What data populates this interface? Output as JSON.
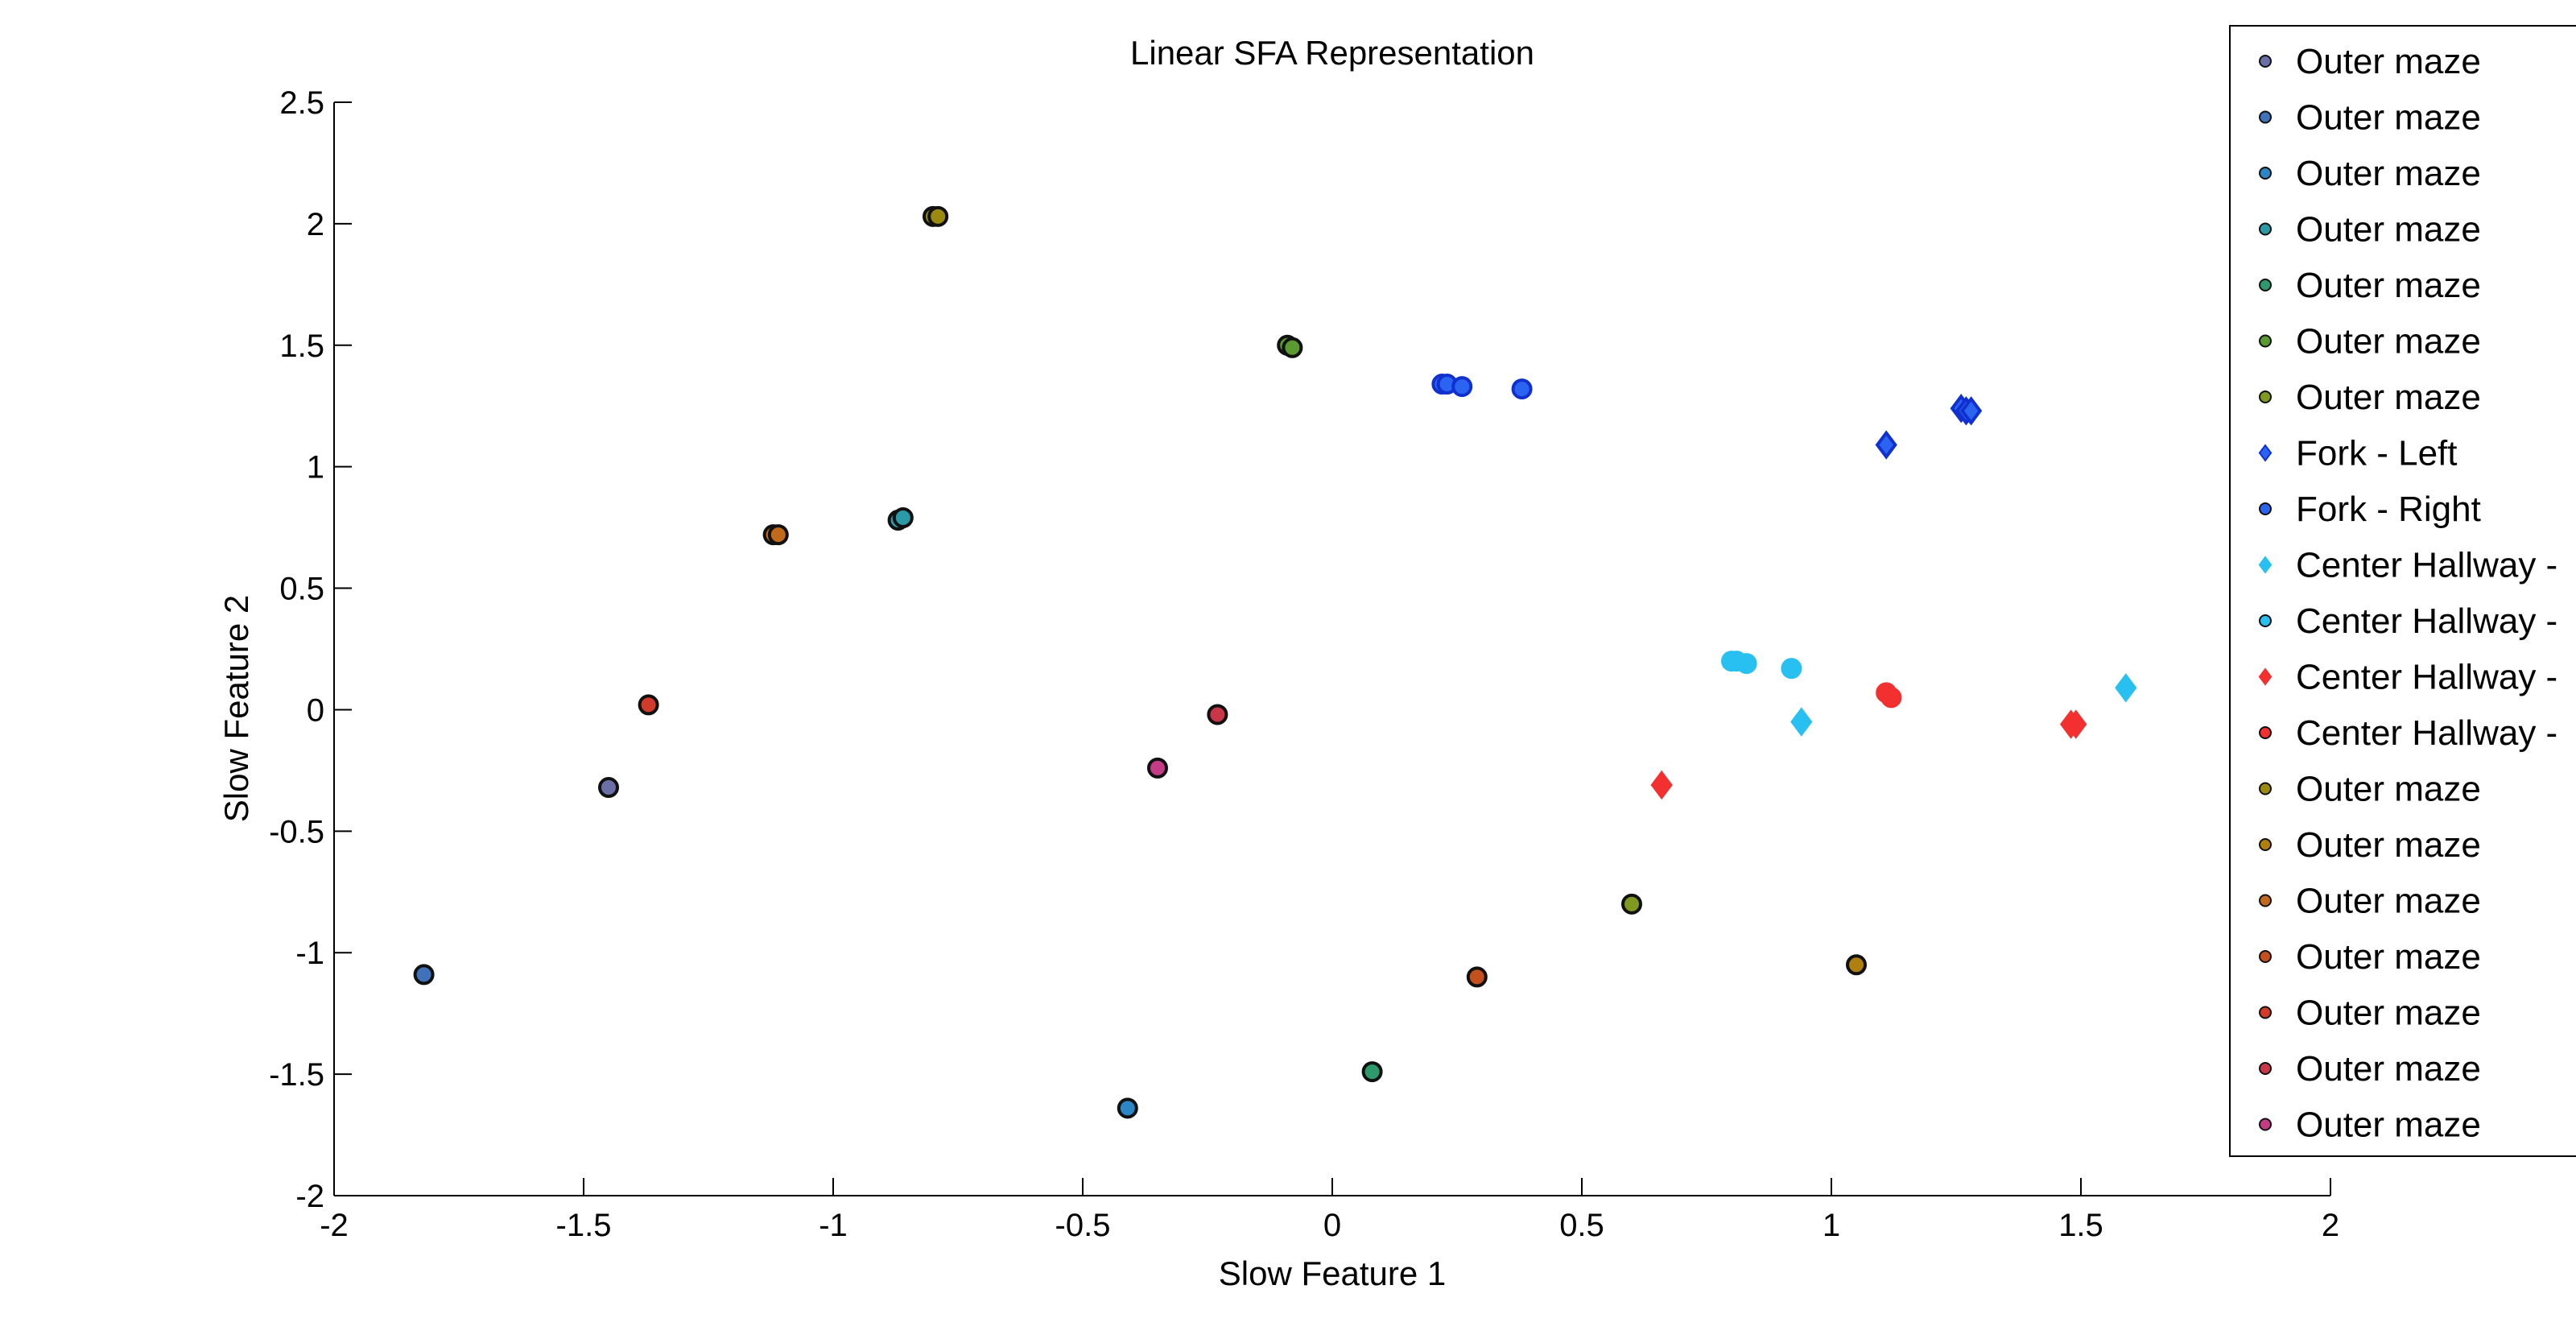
{
  "chart_data": {
    "type": "scatter",
    "title": "Linear SFA Representation",
    "xlabel": "Slow Feature 1",
    "ylabel": "Slow Feature 2",
    "xlim": [
      -2,
      2
    ],
    "ylim": [
      -2,
      2.5
    ],
    "xticks": [
      -2,
      -1.5,
      -1,
      -0.5,
      0,
      0.5,
      1,
      1.5,
      2
    ],
    "xtick_labels": [
      "-2",
      "-1.5",
      "-1",
      "-0.5",
      "0",
      "0.5",
      "1",
      "1.5",
      "2"
    ],
    "yticks": [
      -2,
      -1.5,
      -1,
      -0.5,
      0,
      0.5,
      1,
      1.5,
      2,
      2.5
    ],
    "ytick_labels": [
      "-2",
      "-1.5",
      "-1",
      "-0.5",
      "0",
      "0.5",
      "1",
      "1.5",
      "2",
      "2.5"
    ],
    "grid": false,
    "legend_position": "top-right, outside plot, partly clipped",
    "series": [
      {
        "name": "Outer maze",
        "marker": "circle",
        "color": "#6a6fa8",
        "points": [
          [
            -1.45,
            -0.32
          ]
        ]
      },
      {
        "name": "Outer maze",
        "marker": "circle",
        "color": "#3f72b8",
        "points": [
          [
            -1.82,
            -1.09
          ]
        ]
      },
      {
        "name": "Outer maze",
        "marker": "circle",
        "color": "#2c85c4",
        "points": [
          [
            -0.41,
            -1.64
          ]
        ]
      },
      {
        "name": "Outer maze",
        "marker": "circle",
        "color": "#2a9aa6",
        "points": [
          [
            -0.87,
            0.78
          ],
          [
            -0.86,
            0.79
          ]
        ]
      },
      {
        "name": "Outer maze",
        "marker": "circle",
        "color": "#2e9a6c",
        "points": [
          [
            0.08,
            -1.49
          ]
        ]
      },
      {
        "name": "Outer maze",
        "marker": "circle",
        "color": "#5a9a30",
        "points": [
          [
            -0.09,
            1.5
          ],
          [
            -0.08,
            1.49
          ]
        ]
      },
      {
        "name": "Outer maze",
        "marker": "circle",
        "color": "#7f9a1e",
        "points": [
          [
            0.6,
            -0.8
          ]
        ]
      },
      {
        "name": "Fork - Left",
        "marker": "diamond",
        "color": "#2a64f0",
        "points": [
          [
            1.11,
            1.09
          ],
          [
            1.26,
            1.24
          ],
          [
            1.27,
            1.23
          ],
          [
            1.28,
            1.23
          ]
        ]
      },
      {
        "name": "Fork - Right",
        "marker": "circle",
        "color": "#2a64f0",
        "points": [
          [
            0.22,
            1.34
          ],
          [
            0.23,
            1.34
          ],
          [
            0.26,
            1.33
          ],
          [
            0.38,
            1.32
          ]
        ]
      },
      {
        "name": "Center Hallway -",
        "marker": "diamond",
        "color": "#27c0f0",
        "points": [
          [
            0.94,
            -0.05
          ],
          [
            1.59,
            0.09
          ]
        ]
      },
      {
        "name": "Center Hallway -",
        "marker": "circle",
        "color": "#27c0f0",
        "points": [
          [
            0.8,
            0.2
          ],
          [
            0.81,
            0.2
          ],
          [
            0.83,
            0.19
          ],
          [
            0.92,
            0.17
          ]
        ]
      },
      {
        "name": "Center Hallway -",
        "marker": "diamond",
        "color": "#f23030",
        "points": [
          [
            0.66,
            -0.31
          ],
          [
            1.48,
            -0.06
          ],
          [
            1.49,
            -0.06
          ]
        ]
      },
      {
        "name": "Center Hallway -",
        "marker": "circle",
        "color": "#f23030",
        "points": [
          [
            1.11,
            0.07
          ],
          [
            1.12,
            0.05
          ]
        ]
      },
      {
        "name": "Outer maze",
        "marker": "circle",
        "color": "#9a8a10",
        "points": [
          [
            -0.8,
            2.03
          ],
          [
            -0.79,
            2.03
          ]
        ]
      },
      {
        "name": "Outer maze",
        "marker": "circle",
        "color": "#b0800e",
        "points": [
          [
            1.05,
            -1.05
          ]
        ]
      },
      {
        "name": "Outer maze",
        "marker": "circle",
        "color": "#c26a1c",
        "points": [
          [
            -1.12,
            0.72
          ],
          [
            -1.11,
            0.72
          ]
        ]
      },
      {
        "name": "Outer maze",
        "marker": "circle",
        "color": "#c4501e",
        "points": [
          [
            0.29,
            -1.1
          ]
        ]
      },
      {
        "name": "Outer maze",
        "marker": "circle",
        "color": "#d23a2a",
        "points": [
          [
            -1.37,
            0.02
          ]
        ]
      },
      {
        "name": "Outer maze",
        "marker": "circle",
        "color": "#c83648",
        "points": [
          [
            -0.23,
            -0.02
          ]
        ]
      },
      {
        "name": "Outer maze",
        "marker": "circle",
        "color": "#c43c86",
        "points": [
          [
            -0.35,
            -0.24
          ]
        ]
      }
    ]
  }
}
